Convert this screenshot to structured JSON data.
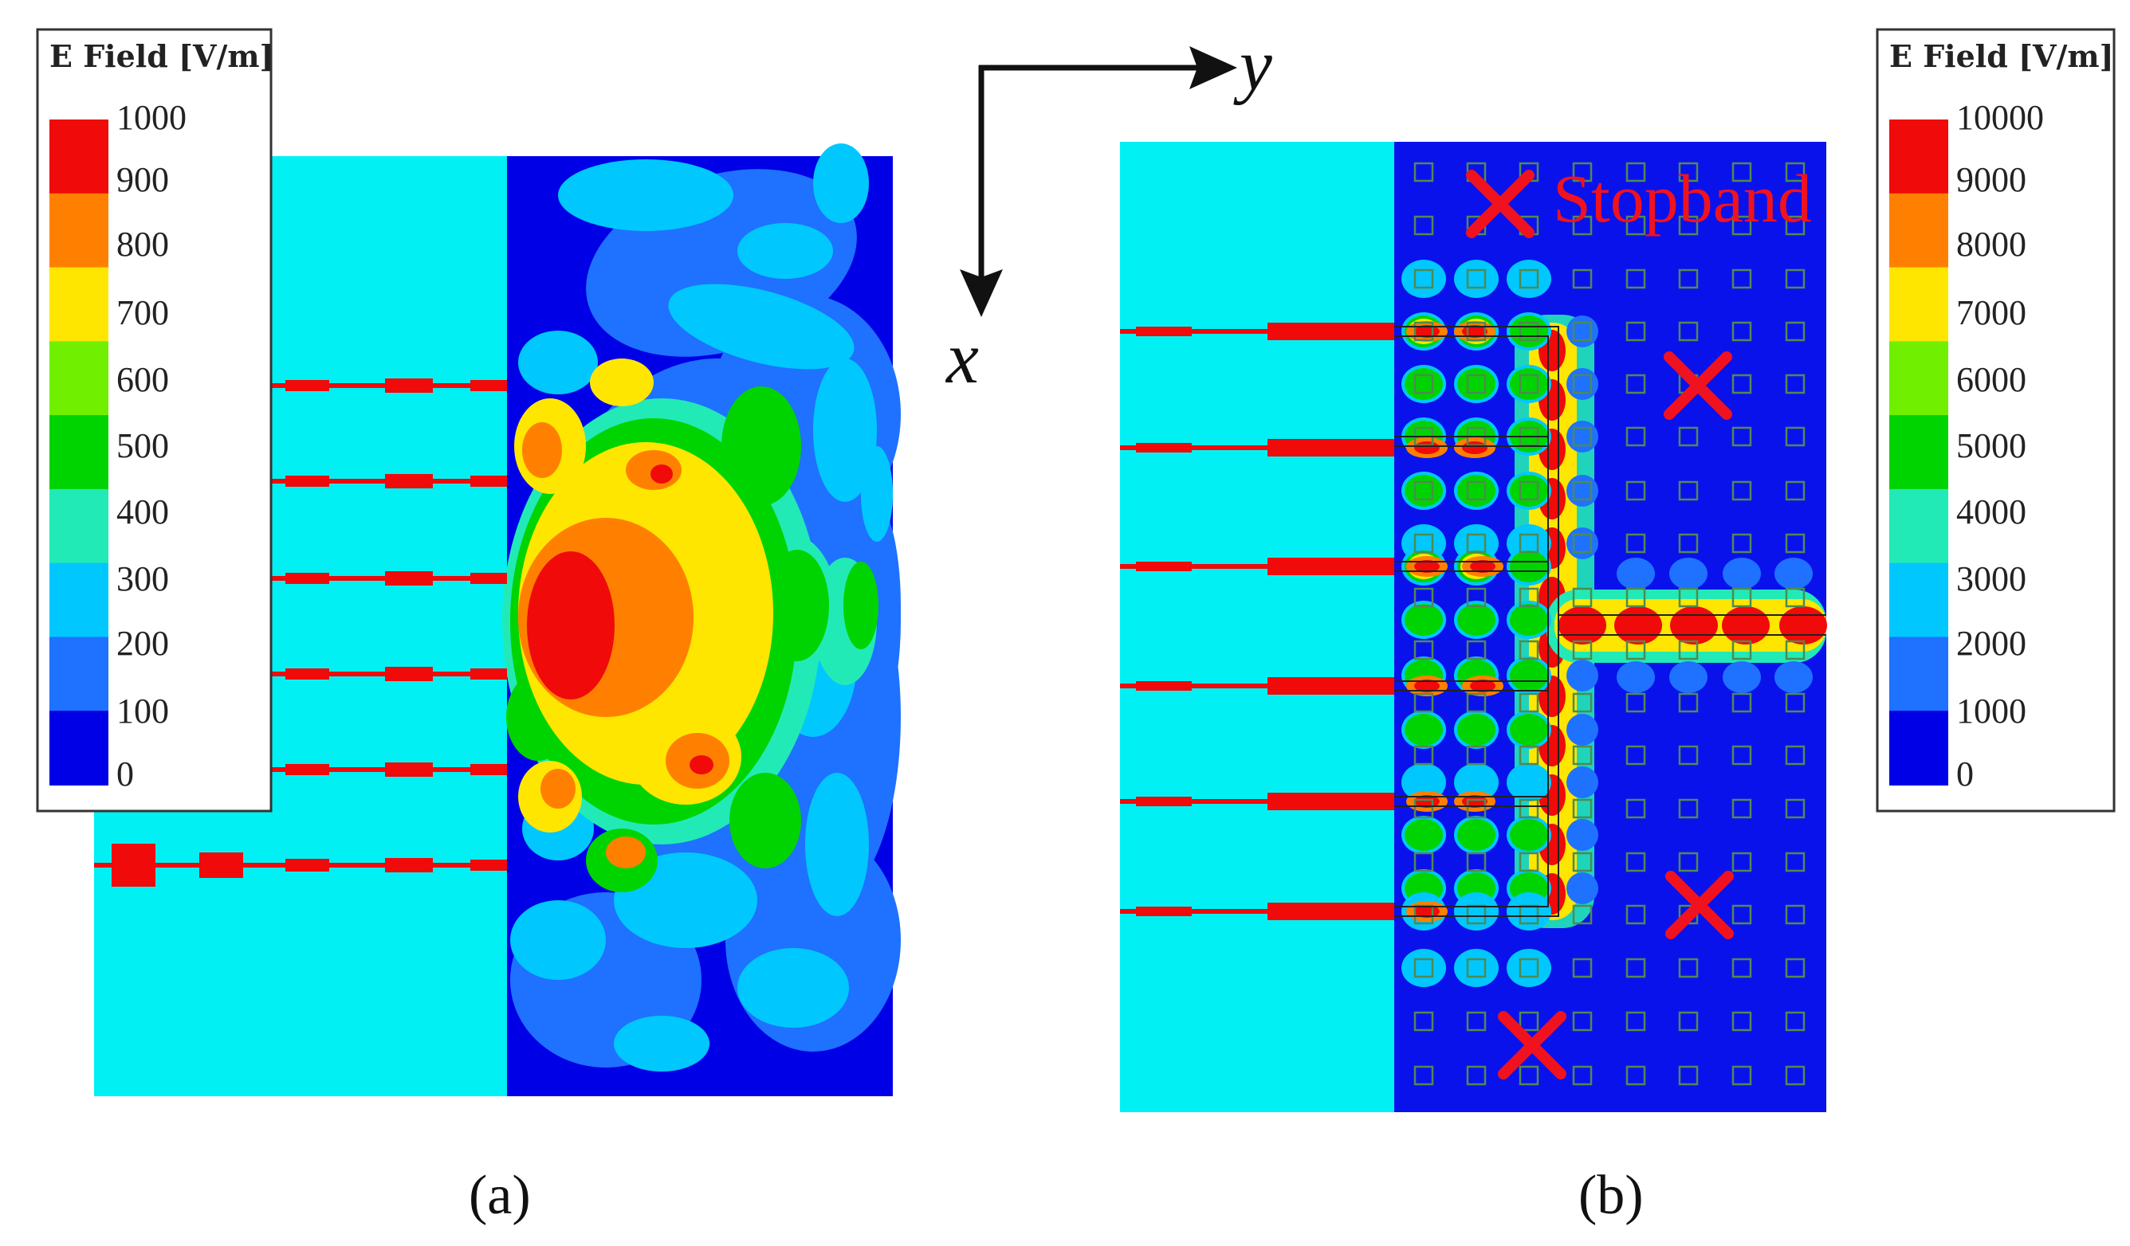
{
  "colors": {
    "substrate": "#00f0f4",
    "lattice_bg": "#0a12ec",
    "feed": "#f00a0a",
    "cross": "#f0121e",
    "cell_outline": "#4f8a52",
    "scale": [
      "#0000e6",
      "#1e72ff",
      "#00c8ff",
      "#22eab6",
      "#00d400",
      "#70f000",
      "#ffe600",
      "#ff8000",
      "#f00a0a"
    ]
  },
  "axes": {
    "x_label": "x",
    "y_label": "y"
  },
  "panel_a": {
    "caption": "(a)",
    "legend": {
      "title": "E Field [V/m]",
      "ticks": [
        "1000",
        "900",
        "800",
        "700",
        "600",
        "500",
        "400",
        "300",
        "200",
        "100",
        "0"
      ]
    }
  },
  "panel_b": {
    "caption": "(b)",
    "annotation": "Stopband",
    "legend": {
      "title": "E Field [V/m]",
      "ticks": [
        "10000",
        "9000",
        "8000",
        "7000",
        "6000",
        "5000",
        "4000",
        "3000",
        "2000",
        "1000",
        "0"
      ]
    }
  }
}
